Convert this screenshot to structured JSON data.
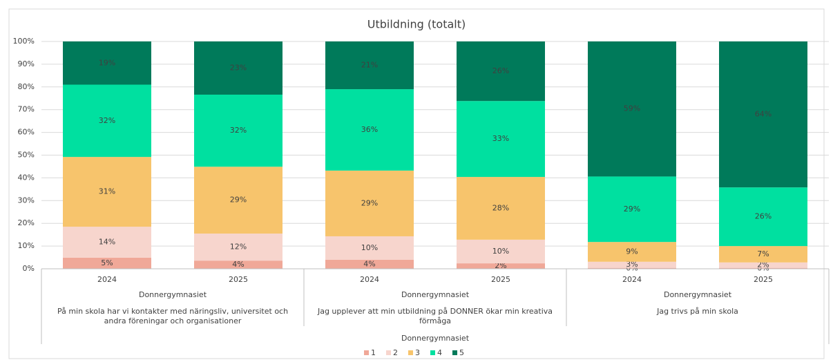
{
  "chart_data": {
    "type": "stacked_bar",
    "title": "Utbildning (totalt)",
    "categories": [
      "2024",
      "2025",
      "2024",
      "2025",
      "2024",
      "2025"
    ],
    "groups": [
      {
        "label": "Donnergymnasiet",
        "name": "På min skola har vi kontakter med näringsliv, universitet och andra föreningar och organisationer"
      },
      {
        "label": "Donnergymnasiet",
        "name": "Jag upplever att min utbildning på DONNER ökar min kreativa förmåga"
      },
      {
        "label": "Donnergymnasiet",
        "name": "Jag trivs på min skola"
      }
    ],
    "super_group": "Donnergymnasiet",
    "series": [
      {
        "name": "1",
        "color": "#f0a898",
        "values": [
          4.9,
          3.6,
          4.0,
          2.4,
          0.4,
          0.4
        ],
        "value_labels": [
          "5%",
          "4%",
          "4%",
          "2%",
          "0%",
          "0%"
        ]
      },
      {
        "name": "2",
        "color": "#f7d5cd",
        "values": [
          13.6,
          11.9,
          10.3,
          10.4,
          2.7,
          2.4
        ],
        "value_labels": [
          "14%",
          "12%",
          "10%",
          "10%",
          "3%",
          "2%"
        ]
      },
      {
        "name": "3",
        "color": "#f7c46c",
        "values": [
          30.7,
          29.4,
          28.9,
          27.6,
          8.7,
          7.2
        ],
        "value_labels": [
          "31%",
          "29%",
          "29%",
          "28%",
          "9%",
          "7%"
        ]
      },
      {
        "name": "4",
        "color": "#00e0a0",
        "values": [
          31.8,
          31.7,
          35.8,
          33.4,
          28.8,
          25.8
        ],
        "value_labels": [
          "32%",
          "32%",
          "36%",
          "33%",
          "29%",
          "26%"
        ]
      },
      {
        "name": "5",
        "color": "#007a5a",
        "values": [
          19.0,
          23.4,
          21.0,
          26.2,
          59.4,
          64.2
        ],
        "value_labels": [
          "19%",
          "23%",
          "21%",
          "26%",
          "59%",
          "64%"
        ]
      }
    ],
    "ylim": [
      0,
      100
    ],
    "yticks": [
      {
        "value": 0,
        "label": "0%"
      },
      {
        "value": 10,
        "label": "10%"
      },
      {
        "value": 20,
        "label": "20%"
      },
      {
        "value": 30,
        "label": "30%"
      },
      {
        "value": 40,
        "label": "40%"
      },
      {
        "value": 50,
        "label": "50%"
      },
      {
        "value": 60,
        "label": "60%"
      },
      {
        "value": 70,
        "label": "70%"
      },
      {
        "value": 80,
        "label": "80%"
      },
      {
        "value": 90,
        "label": "90%"
      },
      {
        "value": 100,
        "label": "100%"
      }
    ],
    "grid": true,
    "legend": "bottom"
  }
}
